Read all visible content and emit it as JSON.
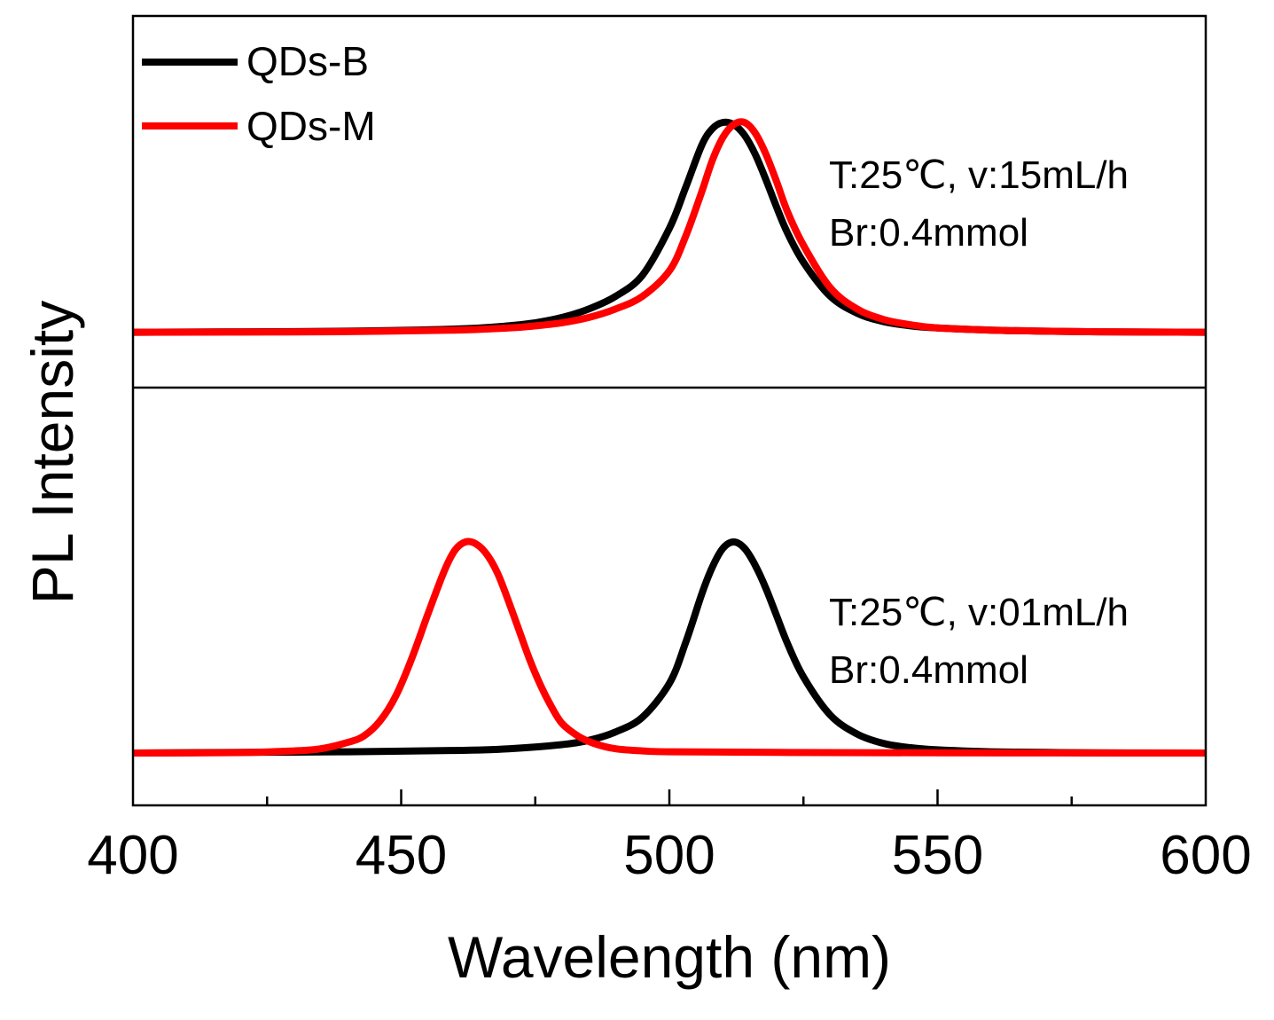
{
  "chart_data": {
    "type": "line",
    "xlabel": "Wavelength (nm)",
    "ylabel": "PL Intensity",
    "xlim": [
      400,
      600
    ],
    "ylim": [
      0,
      1
    ],
    "xticks": [
      400,
      450,
      500,
      550,
      600
    ],
    "minor_xticks": [
      425,
      475,
      525,
      575
    ],
    "grid": false,
    "legend": {
      "position": "top-left",
      "entries": [
        {
          "name": "QDs-B",
          "color": "#000000"
        },
        {
          "name": "QDs-M",
          "color": "#ff0000"
        }
      ]
    },
    "panels": [
      {
        "name": "top",
        "annotation": [
          "T:25℃, v:15mL/h",
          "Br:0.4mmol"
        ],
        "series": [
          {
            "name": "QDs-B",
            "color": "#000000",
            "x": [
              400,
              420,
              440,
              460,
              470,
              475,
              480,
              485,
              490,
              495,
              500,
              503,
              506,
              508,
              510,
              512,
              514,
              516,
              518,
              520,
              522,
              525,
              530,
              535,
              540,
              545,
              550,
              560,
              570,
              580,
              600
            ],
            "y": [
              0.01,
              0.012,
              0.015,
              0.025,
              0.04,
              0.055,
              0.08,
              0.12,
              0.18,
              0.28,
              0.5,
              0.69,
              0.89,
              0.97,
              1.0,
              0.99,
              0.94,
              0.85,
              0.73,
              0.6,
              0.48,
              0.34,
              0.18,
              0.1,
              0.06,
              0.04,
              0.03,
              0.02,
              0.015,
              0.012,
              0.01
            ]
          },
          {
            "name": "QDs-M",
            "color": "#ff0000",
            "x": [
              400,
              420,
              440,
              460,
              470,
              475,
              480,
              485,
              490,
              495,
              500,
              503,
              506,
              508,
              510,
              512,
              514,
              516,
              518,
              520,
              522,
              525,
              530,
              535,
              540,
              545,
              550,
              560,
              570,
              580,
              600
            ],
            "y": [
              0.01,
              0.011,
              0.013,
              0.02,
              0.03,
              0.04,
              0.055,
              0.08,
              0.12,
              0.18,
              0.3,
              0.46,
              0.67,
              0.82,
              0.93,
              0.99,
              1.0,
              0.95,
              0.85,
              0.72,
              0.58,
              0.42,
              0.22,
              0.12,
              0.07,
              0.045,
              0.03,
              0.02,
              0.015,
              0.012,
              0.01
            ]
          }
        ]
      },
      {
        "name": "bottom",
        "annotation": [
          "T:25℃, v:01mL/h",
          "Br:0.4mmol"
        ],
        "series": [
          {
            "name": "QDs-B",
            "color": "#000000",
            "x": [
              400,
              420,
              440,
              460,
              470,
              480,
              485,
              490,
              495,
              500,
              503,
              506,
              508,
              510,
              512,
              514,
              516,
              518,
              520,
              522,
              525,
              530,
              535,
              540,
              545,
              550,
              560,
              570,
              580,
              600
            ],
            "y": [
              0.0,
              0.003,
              0.006,
              0.012,
              0.02,
              0.04,
              0.06,
              0.1,
              0.17,
              0.33,
              0.52,
              0.75,
              0.88,
              0.97,
              1.0,
              0.97,
              0.89,
              0.78,
              0.65,
              0.52,
              0.36,
              0.18,
              0.09,
              0.045,
              0.025,
              0.015,
              0.006,
              0.003,
              0.001,
              0.0
            ]
          },
          {
            "name": "QDs-M",
            "color": "#ff0000",
            "x": [
              400,
              420,
              430,
              435,
              440,
              443,
              446,
              449,
              452,
              455,
              458,
              460,
              462,
              464,
              466,
              468,
              470,
              472,
              474,
              476,
              478,
              480,
              483,
              486,
              490,
              495,
              500,
              520,
              550,
              600
            ],
            "y": [
              0.0,
              0.002,
              0.01,
              0.02,
              0.05,
              0.08,
              0.15,
              0.27,
              0.45,
              0.66,
              0.86,
              0.96,
              1.0,
              0.99,
              0.94,
              0.85,
              0.72,
              0.58,
              0.44,
              0.32,
              0.22,
              0.14,
              0.08,
              0.045,
              0.02,
              0.01,
              0.006,
              0.003,
              0.001,
              0.0
            ]
          }
        ]
      }
    ]
  }
}
